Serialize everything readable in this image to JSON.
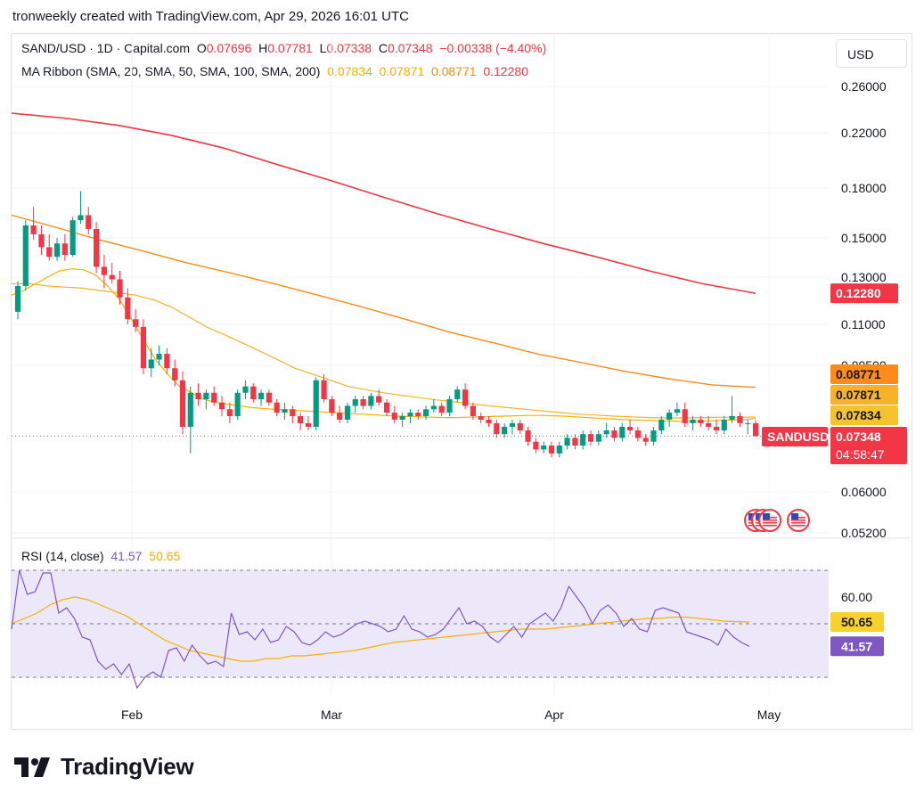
{
  "attribution": "tronweekly created with TradingView.com, Apr 29, 2026 16:01 UTC",
  "legend": {
    "symbol": "SAND/USD · 1D · Capital.com",
    "o_label": "O",
    "o_value": "0.07696",
    "h_label": "H",
    "h_value": "0.07781",
    "l_label": "L",
    "l_value": "0.07338",
    "c_label": "C",
    "c_value": "0.07348",
    "change": "−0.00338 (−4.40%)",
    "ma_title": "MA Ribbon (SMA, 20, SMA, 50, SMA, 100, SMA, 200)",
    "ma20": "0.07834",
    "ma50": "0.07871",
    "ma100": "0.08771",
    "ma200": "0.12280"
  },
  "currency_button": "USD",
  "rsi_legend": {
    "title": "RSI (14, close)",
    "rsi_value": "41.57",
    "ma_value": "50.65"
  },
  "logo_text": "TradingView",
  "colors": {
    "up": "#089981",
    "down": "#f23645",
    "ma20": "#f5b300",
    "ma50": "#f8b22a",
    "ma100": "#ff8b1a",
    "ma200": "#f23645",
    "rsi": "#7e57c2",
    "rsi_bg": "#ede7fa"
  },
  "chart_data": [
    {
      "type": "candlestick",
      "title": "SAND/USD · 1D · Capital.com",
      "x_labels": [
        "Feb",
        "Mar",
        "Apr",
        "May"
      ],
      "y_ticks": [
        "0.26000",
        "0.22000",
        "0.18000",
        "0.15000",
        "0.13000",
        "0.11000",
        "0.09500",
        "0.06000",
        "0.05200"
      ],
      "ohlc": [
        [
          0.115,
          0.128,
          0.112,
          0.126
        ],
        [
          0.126,
          0.16,
          0.124,
          0.157
        ],
        [
          0.157,
          0.168,
          0.149,
          0.152
        ],
        [
          0.152,
          0.157,
          0.141,
          0.145
        ],
        [
          0.145,
          0.152,
          0.138,
          0.14
        ],
        [
          0.14,
          0.15,
          0.138,
          0.147
        ],
        [
          0.147,
          0.152,
          0.138,
          0.141
        ],
        [
          0.141,
          0.162,
          0.14,
          0.16
        ],
        [
          0.16,
          0.178,
          0.158,
          0.163
        ],
        [
          0.163,
          0.168,
          0.152,
          0.155
        ],
        [
          0.155,
          0.159,
          0.132,
          0.135
        ],
        [
          0.135,
          0.141,
          0.125,
          0.131
        ],
        [
          0.131,
          0.137,
          0.127,
          0.129
        ],
        [
          0.129,
          0.133,
          0.118,
          0.121
        ],
        [
          0.121,
          0.125,
          0.11,
          0.112
        ],
        [
          0.112,
          0.116,
          0.107,
          0.109
        ],
        [
          0.109,
          0.112,
          0.092,
          0.094
        ],
        [
          0.094,
          0.101,
          0.091,
          0.097
        ],
        [
          0.097,
          0.102,
          0.095,
          0.099
        ],
        [
          0.099,
          0.101,
          0.092,
          0.094
        ],
        [
          0.094,
          0.097,
          0.088,
          0.09
        ],
        [
          0.09,
          0.093,
          0.074,
          0.076
        ],
        [
          0.076,
          0.088,
          0.069,
          0.086
        ],
        [
          0.086,
          0.089,
          0.082,
          0.084
        ],
        [
          0.084,
          0.087,
          0.081,
          0.086
        ],
        [
          0.086,
          0.088,
          0.082,
          0.083
        ],
        [
          0.083,
          0.085,
          0.079,
          0.081
        ],
        [
          0.081,
          0.083,
          0.077,
          0.079
        ],
        [
          0.079,
          0.087,
          0.078,
          0.086
        ],
        [
          0.086,
          0.09,
          0.084,
          0.088
        ],
        [
          0.088,
          0.089,
          0.083,
          0.084
        ],
        [
          0.084,
          0.087,
          0.082,
          0.086
        ],
        [
          0.086,
          0.087,
          0.082,
          0.083
        ],
        [
          0.083,
          0.084,
          0.079,
          0.08
        ],
        [
          0.08,
          0.083,
          0.078,
          0.081
        ],
        [
          0.081,
          0.082,
          0.077,
          0.079
        ],
        [
          0.079,
          0.08,
          0.075,
          0.077
        ],
        [
          0.077,
          0.079,
          0.075,
          0.076
        ],
        [
          0.076,
          0.091,
          0.075,
          0.09
        ],
        [
          0.09,
          0.092,
          0.083,
          0.084
        ],
        [
          0.084,
          0.085,
          0.079,
          0.08
        ],
        [
          0.08,
          0.082,
          0.077,
          0.078
        ],
        [
          0.078,
          0.083,
          0.077,
          0.082
        ],
        [
          0.082,
          0.085,
          0.08,
          0.084
        ],
        [
          0.084,
          0.085,
          0.081,
          0.082
        ],
        [
          0.082,
          0.086,
          0.081,
          0.085
        ],
        [
          0.085,
          0.087,
          0.082,
          0.083
        ],
        [
          0.083,
          0.084,
          0.079,
          0.08
        ],
        [
          0.08,
          0.082,
          0.077,
          0.078
        ],
        [
          0.078,
          0.08,
          0.076,
          0.079
        ],
        [
          0.079,
          0.081,
          0.077,
          0.08
        ],
        [
          0.08,
          0.081,
          0.078,
          0.079
        ],
        [
          0.079,
          0.082,
          0.078,
          0.081
        ],
        [
          0.081,
          0.084,
          0.08,
          0.082
        ],
        [
          0.082,
          0.083,
          0.079,
          0.08
        ],
        [
          0.08,
          0.085,
          0.079,
          0.084
        ],
        [
          0.084,
          0.088,
          0.083,
          0.087
        ],
        [
          0.087,
          0.089,
          0.081,
          0.082
        ],
        [
          0.082,
          0.083,
          0.078,
          0.079
        ],
        [
          0.079,
          0.08,
          0.077,
          0.078
        ],
        [
          0.078,
          0.079,
          0.076,
          0.077
        ],
        [
          0.077,
          0.078,
          0.073,
          0.074
        ],
        [
          0.074,
          0.077,
          0.073,
          0.076
        ],
        [
          0.076,
          0.078,
          0.074,
          0.077
        ],
        [
          0.077,
          0.078,
          0.074,
          0.075
        ],
        [
          0.075,
          0.076,
          0.071,
          0.072
        ],
        [
          0.072,
          0.073,
          0.069,
          0.07
        ],
        [
          0.07,
          0.072,
          0.069,
          0.071
        ],
        [
          0.071,
          0.072,
          0.068,
          0.069
        ],
        [
          0.069,
          0.072,
          0.068,
          0.071
        ],
        [
          0.071,
          0.074,
          0.07,
          0.073
        ],
        [
          0.073,
          0.074,
          0.07,
          0.071
        ],
        [
          0.071,
          0.075,
          0.07,
          0.074
        ],
        [
          0.074,
          0.075,
          0.071,
          0.072
        ],
        [
          0.072,
          0.075,
          0.071,
          0.074
        ],
        [
          0.074,
          0.077,
          0.073,
          0.075
        ],
        [
          0.075,
          0.076,
          0.072,
          0.073
        ],
        [
          0.073,
          0.077,
          0.072,
          0.076
        ],
        [
          0.076,
          0.078,
          0.074,
          0.075
        ],
        [
          0.075,
          0.076,
          0.072,
          0.073
        ],
        [
          0.073,
          0.074,
          0.071,
          0.072
        ],
        [
          0.072,
          0.076,
          0.071,
          0.075
        ],
        [
          0.075,
          0.079,
          0.074,
          0.078
        ],
        [
          0.078,
          0.081,
          0.076,
          0.08
        ],
        [
          0.08,
          0.083,
          0.079,
          0.081
        ],
        [
          0.081,
          0.083,
          0.076,
          0.077
        ],
        [
          0.077,
          0.079,
          0.075,
          0.078
        ],
        [
          0.078,
          0.079,
          0.076,
          0.077
        ],
        [
          0.077,
          0.079,
          0.075,
          0.076
        ],
        [
          0.076,
          0.078,
          0.074,
          0.075
        ],
        [
          0.075,
          0.079,
          0.074,
          0.078
        ],
        [
          0.078,
          0.085,
          0.077,
          0.079
        ],
        [
          0.079,
          0.08,
          0.076,
          0.077
        ],
        [
          0.077,
          0.078,
          0.074,
          0.077
        ],
        [
          0.07696,
          0.07781,
          0.07338,
          0.07348
        ]
      ],
      "ma20": [
        0.122,
        0.124,
        0.127,
        0.13,
        0.133,
        0.134,
        0.1335,
        0.131,
        0.126,
        0.12,
        0.112,
        0.104,
        0.097,
        0.092,
        0.088,
        0.086,
        0.084,
        0.083,
        0.0825,
        0.082,
        0.0815,
        0.0812,
        0.081,
        0.0808,
        0.0806,
        0.0804,
        0.0802,
        0.08,
        0.0798,
        0.0796,
        0.0794,
        0.0792,
        0.079,
        0.0789,
        0.0788,
        0.0787,
        0.0786,
        0.0786,
        0.0787,
        0.0788,
        0.0789,
        0.079,
        0.0791,
        0.0792,
        0.0792,
        0.0791,
        0.079,
        0.0788,
        0.0786,
        0.0784,
        0.0782,
        0.078,
        0.0779,
        0.0778,
        0.0777,
        0.0776,
        0.0775,
        0.0775,
        0.0776,
        0.0778,
        0.0779,
        0.078,
        0.07834
      ],
      "ma50": [
        0.127,
        0.127,
        0.126,
        0.1255,
        0.125,
        0.124,
        0.123,
        0.122,
        0.12,
        0.117,
        0.113,
        0.109,
        0.106,
        0.103,
        0.1,
        0.097,
        0.094,
        0.092,
        0.09,
        0.088,
        0.087,
        0.086,
        0.0852,
        0.0845,
        0.0838,
        0.0832,
        0.0826,
        0.082,
        0.0815,
        0.081,
        0.0805,
        0.08,
        0.0796,
        0.0793,
        0.079,
        0.0788,
        0.0786,
        0.0785,
        0.0785,
        0.0786,
        0.0787,
        0.0787,
        0.07871
      ],
      "ma100": [
        0.163,
        0.156,
        0.149,
        0.143,
        0.137,
        0.132,
        0.127,
        0.122,
        0.117,
        0.112,
        0.107,
        0.103,
        0.099,
        0.096,
        0.093,
        0.0905,
        0.0885,
        0.08771
      ],
      "ma200": [
        0.236,
        0.232,
        0.226,
        0.218,
        0.208,
        0.196,
        0.185,
        0.174,
        0.164,
        0.155,
        0.147,
        0.14,
        0.133,
        0.127,
        0.1228
      ]
    },
    {
      "type": "line",
      "title": "RSI (14, close)",
      "y_ticks": [
        "60.00"
      ],
      "bands": [
        70,
        50,
        30
      ],
      "rsi": [
        48,
        70,
        61,
        62,
        69,
        69,
        54,
        56,
        52,
        45,
        44,
        36,
        33,
        35,
        31,
        35,
        26,
        30,
        32,
        30,
        40,
        41,
        36,
        42,
        38,
        35,
        36,
        34,
        54,
        46,
        47,
        44,
        48,
        43,
        44,
        49,
        47,
        43,
        42,
        44,
        47,
        45,
        46,
        48,
        50,
        51,
        50,
        49,
        47,
        48,
        53,
        48,
        47,
        45,
        46,
        48,
        52,
        56,
        50,
        51,
        49,
        45,
        43,
        46,
        49,
        45,
        50,
        52,
        54,
        51,
        56,
        64,
        60,
        56,
        50,
        55,
        57,
        54,
        49,
        52,
        48,
        47,
        55,
        56,
        55,
        54,
        47,
        46,
        45,
        44,
        42,
        48,
        45,
        43,
        41.57
      ],
      "rsi_ma": [
        50,
        52,
        54,
        57,
        59,
        60,
        59,
        57,
        55,
        53,
        50,
        47,
        44,
        42,
        40,
        39,
        38,
        37,
        36,
        36,
        37,
        37,
        38,
        38,
        38.5,
        39,
        39.5,
        40,
        41,
        42,
        43,
        43.5,
        44,
        44.5,
        45,
        45.5,
        46,
        46.5,
        47,
        47.5,
        48,
        48,
        48,
        48.5,
        49,
        49.5,
        50,
        50.5,
        51,
        51.5,
        52,
        52,
        52.5,
        52.5,
        52,
        51.5,
        51,
        50.8,
        50.65
      ]
    }
  ],
  "axis": {
    "price_labels": [
      {
        "text": "0.26000",
        "v": 0.26
      },
      {
        "text": "0.22000",
        "v": 0.22
      },
      {
        "text": "0.18000",
        "v": 0.18
      },
      {
        "text": "0.15000",
        "v": 0.15
      },
      {
        "text": "0.13000",
        "v": 0.13
      },
      {
        "text": "0.11000",
        "v": 0.11
      },
      {
        "text": "0.09500",
        "v": 0.095
      },
      {
        "text": "0.06000",
        "v": 0.06
      },
      {
        "text": "0.05200",
        "v": 0.052
      }
    ],
    "badges": {
      "ma200": "0.12280",
      "ma100": "0.08771",
      "ma50": "0.07871",
      "ma20": "0.07834",
      "symbol": "SANDUSD",
      "close": "0.07348",
      "countdown": "04:58:47",
      "rsi_ma": "50.65",
      "rsi": "41.57",
      "rsi_tick": "60.00"
    },
    "x_labels": [
      "Feb",
      "Mar",
      "Apr",
      "May"
    ]
  }
}
